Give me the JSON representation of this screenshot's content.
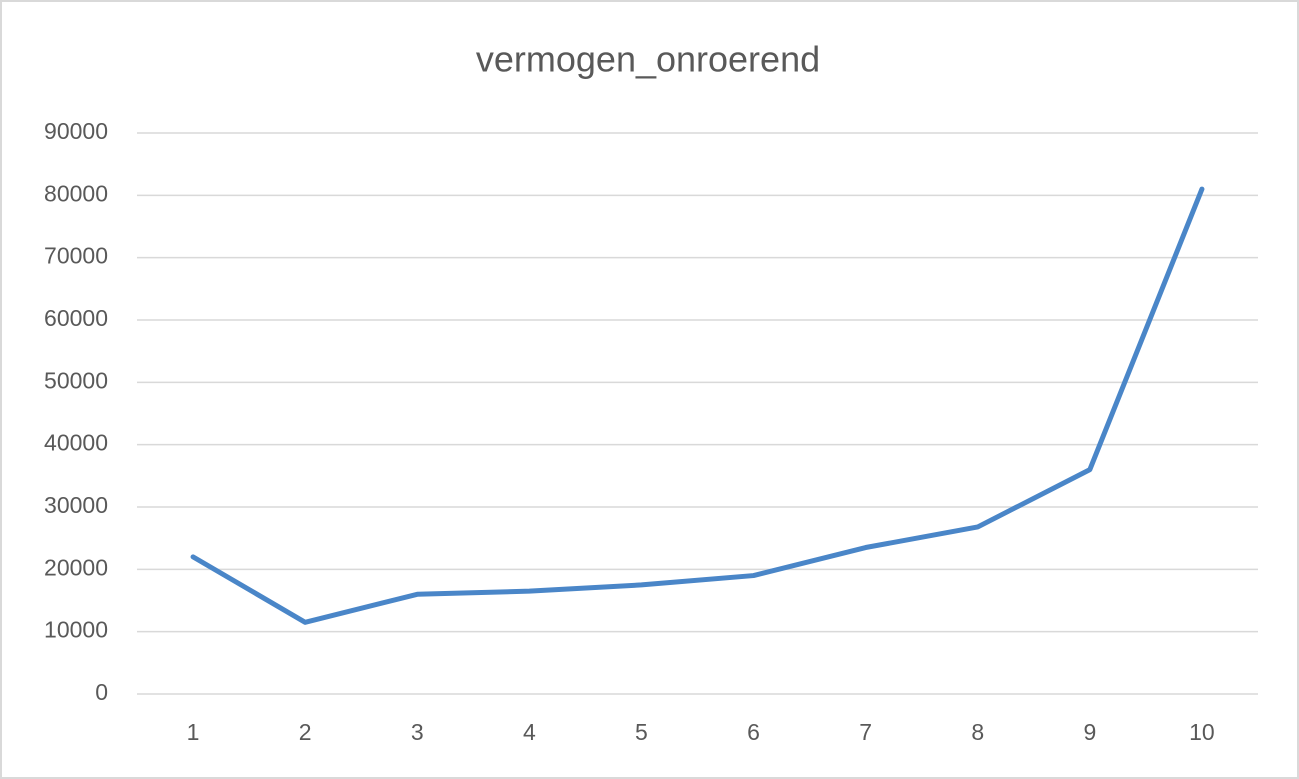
{
  "chart_data": {
    "type": "line",
    "title": "vermogen_onroerend",
    "categories": [
      "1",
      "2",
      "3",
      "4",
      "5",
      "6",
      "7",
      "8",
      "9",
      "10"
    ],
    "series": [
      {
        "name": "vermogen_onroerend",
        "color": "#4a86c8",
        "values": [
          22000,
          11500,
          16000,
          16500,
          17500,
          19000,
          23500,
          26800,
          36000,
          81000
        ]
      }
    ],
    "ylim": [
      0,
      90000
    ],
    "yticks": [
      0,
      10000,
      20000,
      30000,
      40000,
      50000,
      60000,
      70000,
      80000,
      90000
    ],
    "grid": true
  }
}
